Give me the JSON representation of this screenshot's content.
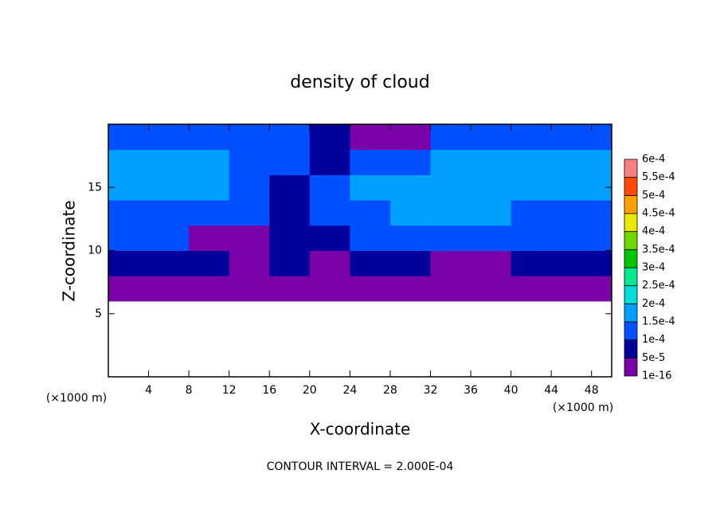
{
  "chart_data": {
    "type": "contour",
    "title": "density of cloud",
    "xlabel": "X-coordinate",
    "ylabel": "Z-coordinate",
    "xunit": "(×1000 m)",
    "yunit": "(×1000 m)",
    "footnote": "CONTOUR INTERVAL = 2.000E-04",
    "xlim": [
      0,
      50
    ],
    "ylim": [
      0,
      20
    ],
    "xticks": [
      4,
      8,
      12,
      16,
      20,
      24,
      28,
      32,
      36,
      40,
      44,
      48
    ],
    "yticks": [
      5,
      10,
      15
    ],
    "x": [
      2,
      6,
      10,
      14,
      18,
      22,
      26,
      30,
      34,
      38,
      42,
      46,
      50
    ],
    "y": [
      7,
      9,
      11,
      13,
      15,
      17,
      19
    ],
    "z": [
      [
        2e-05,
        2e-05,
        2e-05,
        2e-05,
        2e-05,
        2e-05,
        2e-05,
        2e-05,
        2e-05,
        2e-05,
        2e-05,
        2e-05,
        2e-05
      ],
      [
        6e-05,
        6e-05,
        6e-05,
        2e-05,
        5e-05,
        2e-05,
        6e-05,
        6e-05,
        3e-05,
        2e-05,
        6e-05,
        6e-05,
        6e-05
      ],
      [
        0.00011,
        0.00011,
        2e-05,
        2e-05,
        8e-05,
        7e-05,
        0.00012,
        0.00012,
        0.00011,
        0.00011,
        0.00011,
        0.00011,
        0.00011
      ],
      [
        0.00013,
        0.00013,
        0.00012,
        0.0001,
        8e-05,
        0.00012,
        0.00014,
        0.00016,
        0.00016,
        0.00015,
        0.00014,
        0.00013,
        0.00013
      ],
      [
        0.00016,
        0.00016,
        0.00016,
        0.00013,
        9e-05,
        0.00011,
        0.00016,
        0.00016,
        0.00016,
        0.00015,
        0.00016,
        0.00016,
        0.00016
      ],
      [
        0.00015,
        0.00015,
        0.00015,
        0.00013,
        0.00011,
        8e-05,
        0.00012,
        0.00014,
        0.00015,
        0.00015,
        0.00015,
        0.00015,
        0.00015
      ],
      [
        0.00012,
        0.00012,
        0.00012,
        0.00012,
        0.00011,
        6e-05,
        2e-05,
        2e-05,
        0.00011,
        0.00011,
        0.00012,
        0.00012,
        0.00012
      ]
    ],
    "colorbar": {
      "levels": [
        1e-16,
        {
          "value": 5e-05,
          "label": "5e-5"
        },
        {
          "value": 0.0001,
          "label": "1e-4"
        },
        {
          "value": 0.00015,
          "label": "1.5e-4"
        },
        {
          "value": 0.0002,
          "label": "2e-4"
        },
        {
          "value": 0.00025,
          "label": "2.5e-4"
        },
        {
          "value": 0.0003,
          "label": "3e-4"
        },
        {
          "value": 0.00035,
          "label": "3.5e-4"
        },
        {
          "value": 0.0004,
          "label": "4e-4"
        },
        {
          "value": 0.00045,
          "label": "4.5e-4"
        },
        {
          "value": 0.0005,
          "label": "5e-4"
        },
        {
          "value": 0.00055,
          "label": "5.5e-4"
        },
        {
          "value": 0.0006,
          "label": "6e-4"
        }
      ],
      "colors": [
        "#7a00a8",
        "#00009a",
        "#0050ff",
        "#00a0ff",
        "#00e0d8",
        "#00e890",
        "#00c800",
        "#70d800",
        "#e8e800",
        "#ffa000",
        "#ff4800",
        "#ff8080"
      ]
    }
  }
}
